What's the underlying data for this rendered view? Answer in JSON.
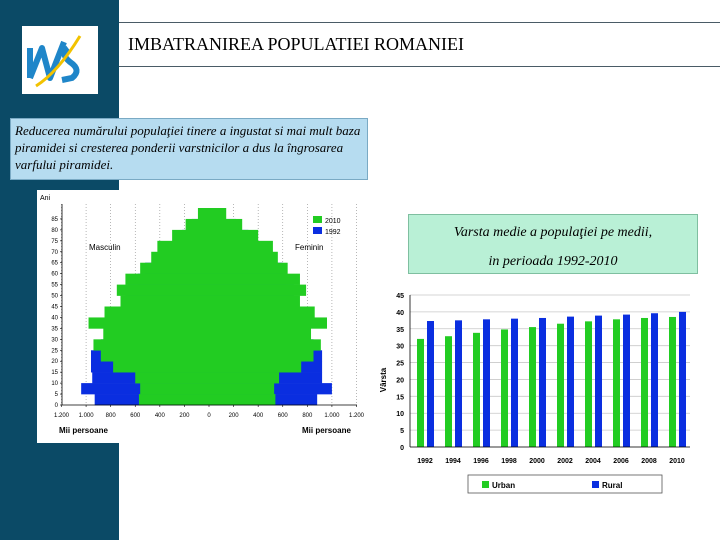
{
  "slide": {
    "title": "IMBATRANIREA  POPULATIEI ROMANIEI",
    "caption": "Reducerea numărului populaţiei tinere a ingustat si mai mult baza piramidei si cresterea ponderii varstnicilor a dus la îngrosarea varfului piramidei.",
    "median_title_line1": "Varsta medie a populaţiei pe medii,",
    "median_title_line2": "in perioada 1992-2010",
    "colors": {
      "sidebar": "#0b4a66",
      "green": "#22cc22",
      "blue": "#0a2ee0",
      "caption_bg": "#b6dcf0",
      "median_bg": "#b9f0d6"
    }
  },
  "chart_data": [
    {
      "type": "bar",
      "subtype": "population-pyramid",
      "title": "",
      "y_axis_title": "Ani",
      "left_label": "Masculin",
      "right_label": "Feminin",
      "xlabel_left": "Mii persoane",
      "xlabel_right": "Mii persoane",
      "x_ticks": [
        "1.200",
        "1.000",
        "800",
        "600",
        "400",
        "200",
        "0",
        "200",
        "400",
        "600",
        "800",
        "1.000",
        "1.200"
      ],
      "y_ticks": [
        "0",
        "5",
        "10",
        "15",
        "20",
        "25",
        "30",
        "35",
        "40",
        "45",
        "50",
        "55",
        "60",
        "65",
        "70",
        "75",
        "80",
        "85"
      ],
      "xlim": [
        -1200,
        1200
      ],
      "ylim": [
        0,
        90
      ],
      "age_groups": [
        "0-4",
        "5-9",
        "10-14",
        "15-19",
        "20-24",
        "25-29",
        "30-34",
        "35-39",
        "40-44",
        "45-49",
        "50-54",
        "55-59",
        "60-64",
        "65-69",
        "70-74",
        "75-79",
        "80-84",
        "85+"
      ],
      "series": [
        {
          "name": "2010",
          "color": "#22cc22",
          "male": [
            570,
            560,
            600,
            780,
            880,
            940,
            860,
            980,
            850,
            720,
            750,
            680,
            560,
            470,
            420,
            300,
            190,
            90
          ],
          "female": [
            540,
            530,
            570,
            750,
            850,
            910,
            830,
            960,
            860,
            740,
            790,
            740,
            640,
            560,
            520,
            400,
            270,
            140
          ]
        },
        {
          "name": "1992",
          "color": "#0a2ee0",
          "male": [
            930,
            1040,
            950,
            960,
            960,
            880,
            830,
            720,
            690,
            680,
            660,
            580,
            520,
            390,
            300,
            220,
            140,
            70
          ],
          "female": [
            880,
            1000,
            920,
            920,
            920,
            850,
            810,
            710,
            680,
            690,
            690,
            630,
            600,
            480,
            400,
            320,
            220,
            110
          ]
        }
      ]
    },
    {
      "type": "bar",
      "title": "",
      "xlabel": "",
      "ylabel": "Vârsta",
      "categories": [
        "1992",
        "1994",
        "1996",
        "1998",
        "2000",
        "2002",
        "2004",
        "2006",
        "2008",
        "2010"
      ],
      "ylim": [
        0,
        45
      ],
      "y_ticks": [
        "0",
        "5",
        "10",
        "15",
        "20",
        "25",
        "30",
        "35",
        "40",
        "45"
      ],
      "grid": true,
      "legend_position": "bottom",
      "series": [
        {
          "name": "Urban",
          "color": "#22cc22",
          "values": [
            32.0,
            32.8,
            33.8,
            34.8,
            35.5,
            36.5,
            37.2,
            37.8,
            38.2,
            38.5
          ]
        },
        {
          "name": "Rural",
          "color": "#0a2ee0",
          "values": [
            37.3,
            37.5,
            37.8,
            38.0,
            38.2,
            38.6,
            38.9,
            39.2,
            39.6,
            40.0
          ]
        }
      ]
    }
  ]
}
